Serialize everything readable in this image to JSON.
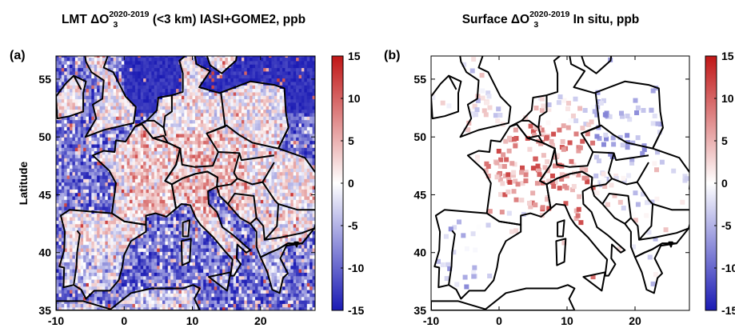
{
  "panels": [
    {
      "id": "a",
      "label": "(a)",
      "title_main_pre": "LMT ",
      "title_delta": "ΔO",
      "title_sup": "2020-2019",
      "title_sub": "3",
      "title_post": " (<3 km) IASI+GOME2, ppb",
      "ylabel": "Latitude",
      "mode": "satellite"
    },
    {
      "id": "b",
      "label": "(b)",
      "title_main_pre": "Surface ",
      "title_delta": "ΔO",
      "title_sup": "2020-2019",
      "title_sub": "3",
      "title_post": " In situ, ppb",
      "ylabel": "",
      "mode": "insitu"
    }
  ],
  "axes": {
    "xlim": [
      -10,
      28
    ],
    "ylim": [
      35,
      57
    ],
    "xticks": [
      "-10",
      "0",
      "10",
      "20"
    ],
    "xtick_values": [
      -10,
      0,
      10,
      20
    ],
    "yticks": [
      "35",
      "40",
      "45",
      "50",
      "55"
    ],
    "ytick_values": [
      35,
      40,
      45,
      50,
      55
    ]
  },
  "colorbar": {
    "ticks": [
      "15",
      "10",
      "5",
      "0",
      "-5",
      "-10",
      "-15"
    ],
    "tick_values": [
      15,
      10,
      5,
      0,
      -5,
      -10,
      -15
    ],
    "range": [
      -15,
      15
    ],
    "colors": {
      "low": "#1a1ab4",
      "mid": "#ffffff",
      "high": "#c01616"
    }
  }
}
